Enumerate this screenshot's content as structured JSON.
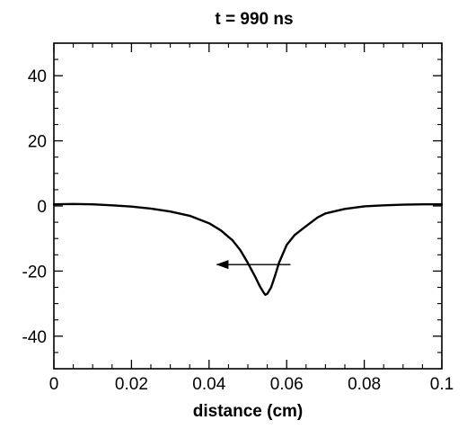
{
  "chart_data": {
    "type": "line",
    "title": "t = 990 ns",
    "xlabel": "distance (cm)",
    "ylabel": "",
    "xlim": [
      0,
      0.1
    ],
    "ylim": [
      -50,
      50
    ],
    "xticks": [
      0,
      0.02,
      0.04,
      0.06,
      0.08,
      0.1
    ],
    "xtick_labels": [
      "0",
      "0.02",
      "0.04",
      "0.06",
      "0.08",
      "0.1"
    ],
    "yticks": [
      -40,
      -20,
      0,
      20,
      40
    ],
    "ytick_labels": [
      "-40",
      "-20",
      "0",
      "20",
      "40"
    ],
    "grid": false,
    "legend": "none",
    "series": [
      {
        "x": [
          0,
          0.005,
          0.01,
          0.015,
          0.02,
          0.025,
          0.03,
          0.035,
          0.04,
          0.043,
          0.046,
          0.048,
          0.05,
          0.052,
          0.053,
          0.054,
          0.0545,
          0.055,
          0.056,
          0.057,
          0.058,
          0.06,
          0.062,
          0.065,
          0.068,
          0.07,
          0.075,
          0.08,
          0.085,
          0.09,
          0.095,
          0.1
        ],
        "y": [
          0.5,
          0.6,
          0.5,
          0.2,
          -0.2,
          -0.8,
          -1.7,
          -3.0,
          -5.3,
          -7.5,
          -10.5,
          -13.5,
          -17.5,
          -22.0,
          -24.5,
          -26.5,
          -27.3,
          -27.0,
          -25.0,
          -21.5,
          -17.5,
          -12.0,
          -9.0,
          -6.2,
          -3.5,
          -2.3,
          -0.9,
          -0.1,
          0.2,
          0.4,
          0.5,
          0.5
        ],
        "color": "#000000"
      }
    ],
    "annotations": [
      {
        "type": "arrow",
        "from": [
          0.061,
          -18.0
        ],
        "to": [
          0.042,
          -18.0
        ],
        "color": "#000000"
      }
    ]
  }
}
